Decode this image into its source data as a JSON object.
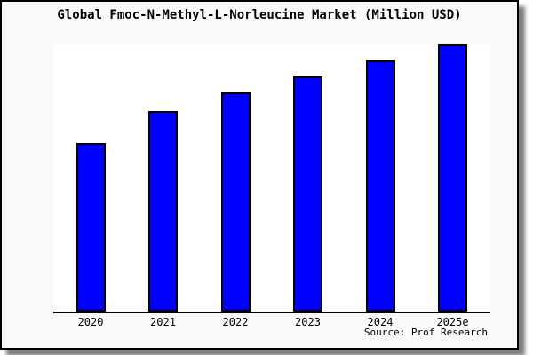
{
  "card": {
    "background": "#fafafa",
    "border_color": "#000000"
  },
  "chart_data": {
    "type": "bar",
    "title": "Global Fmoc-N-Methyl-L-Norleucine Market (Million USD)",
    "categories": [
      "2020",
      "2021",
      "2022",
      "2023",
      "2024",
      "2025e"
    ],
    "values": [
      63,
      75,
      82,
      88,
      94,
      100
    ],
    "xlabel": "",
    "ylabel": "",
    "ylim": [
      0,
      100
    ],
    "grid": false,
    "legend": false,
    "y_axis_labels_shown": false,
    "bar_color": "#0000ff",
    "bar_border_color": "#000000",
    "source_label": "Source: Prof Research"
  }
}
